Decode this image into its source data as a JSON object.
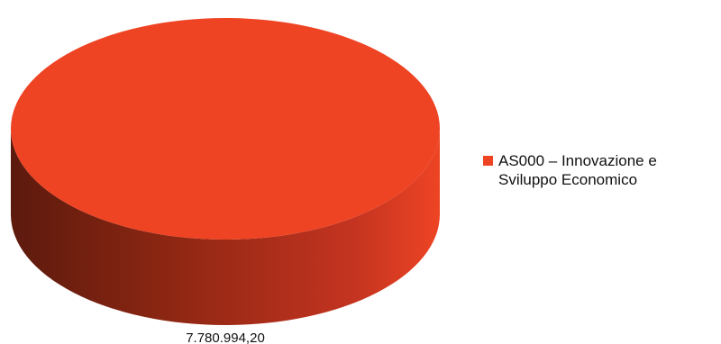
{
  "chart_data": {
    "type": "pie",
    "title": "",
    "slices": [
      {
        "label": "AS000 – Innovazione e Sviluppo Economico",
        "value": 7780994.2,
        "value_label": "7.780.994,20",
        "color": "#ee4424"
      }
    ],
    "legend": {
      "position": "right"
    },
    "style": "3d-cylinder",
    "side_colors": {
      "dark": "#5c1a0d",
      "mid": "#8a2612",
      "light": "#c43420"
    }
  }
}
